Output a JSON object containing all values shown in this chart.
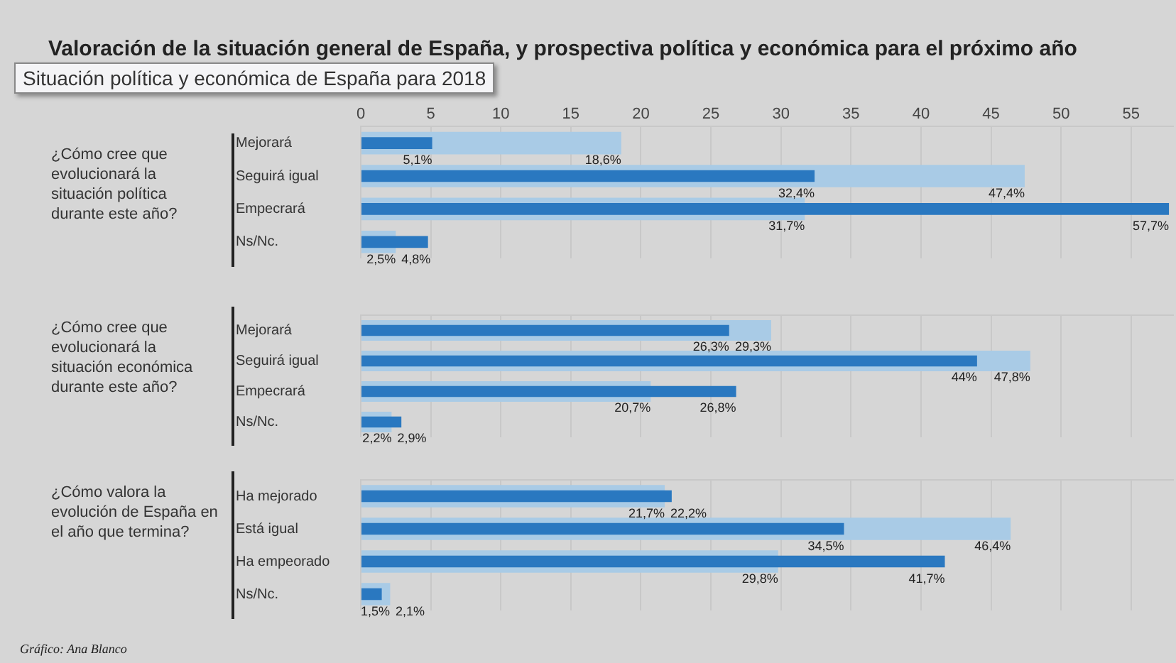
{
  "chart_data": [
    {
      "type": "bar",
      "orientation": "horizontal",
      "title": "Valoración de la situación general de España, y prospectiva política y económica para el próximo año",
      "subtitle": "Situación política y económica de España para 2018",
      "ylabel": "¿Cómo cree que evolucionará la situación política durante este año?",
      "categories": [
        "Mejorará",
        "Seguirá igual",
        "Empecrará",
        "Ns/Nc."
      ],
      "series": [
        {
          "color": "#a9cbe6",
          "values": [
            18.6,
            47.4,
            31.7,
            2.5
          ],
          "value_labels": [
            "18,6%",
            "47,4%",
            "31,7%",
            "2,5%"
          ]
        },
        {
          "color": "#2a78c0",
          "values": [
            5.1,
            32.4,
            57.7,
            4.8
          ],
          "value_labels": [
            "5,1%",
            "32,4%",
            "57,7%",
            "4,8%"
          ]
        }
      ],
      "xlim": [
        0,
        58
      ],
      "xticks": [
        0,
        5,
        10,
        15,
        20,
        25,
        30,
        35,
        40,
        45,
        50,
        55
      ],
      "grid": "x"
    },
    {
      "type": "bar",
      "orientation": "horizontal",
      "ylabel": "¿Cómo cree que evolucionará la situación económica durante este año?",
      "categories": [
        "Mejorará",
        "Seguirá igual",
        "Empecrará",
        "Ns/Nc."
      ],
      "series": [
        {
          "color": "#a9cbe6",
          "values": [
            29.3,
            47.8,
            20.7,
            2.2
          ],
          "value_labels": [
            "29,3%",
            "47,8%",
            "20,7%",
            "2,2%"
          ]
        },
        {
          "color": "#2a78c0",
          "values": [
            26.3,
            44,
            26.8,
            2.9
          ],
          "value_labels": [
            "26,3%",
            "44%",
            "26,8%",
            "2,9%"
          ]
        }
      ],
      "xlim": [
        0,
        58
      ],
      "xticks": [
        0,
        5,
        10,
        15,
        20,
        25,
        30,
        35,
        40,
        45,
        50,
        55
      ],
      "grid": "x",
      "tick_labels": "y"
    },
    {
      "type": "bar",
      "orientation": "horizontal",
      "ylabel": "¿Cómo valora la evolución de España en el año que termina?",
      "categories": [
        "Ha mejorado",
        "Está igual",
        "Ha empeorado",
        "Ns/Nc."
      ],
      "series": [
        {
          "color": "#a9cbe6",
          "values": [
            21.7,
            46.4,
            29.8,
            2.1
          ],
          "value_labels": [
            "21,7%",
            "46,4%",
            "29,8%",
            "2,1%"
          ]
        },
        {
          "color": "#2a78c0",
          "values": [
            22.2,
            34.5,
            41.7,
            1.5
          ],
          "value_labels": [
            "22,2%",
            "34,5%",
            "41,7%",
            "1,5%"
          ]
        }
      ],
      "xlim": [
        0,
        58
      ],
      "xticks": [
        0,
        5,
        10,
        15,
        20,
        25,
        30,
        35,
        40,
        45,
        50,
        55
      ],
      "grid": "x",
      "tick_labels": "y",
      "annotations": [
        "Gráfico: Ana Blanco"
      ]
    }
  ]
}
